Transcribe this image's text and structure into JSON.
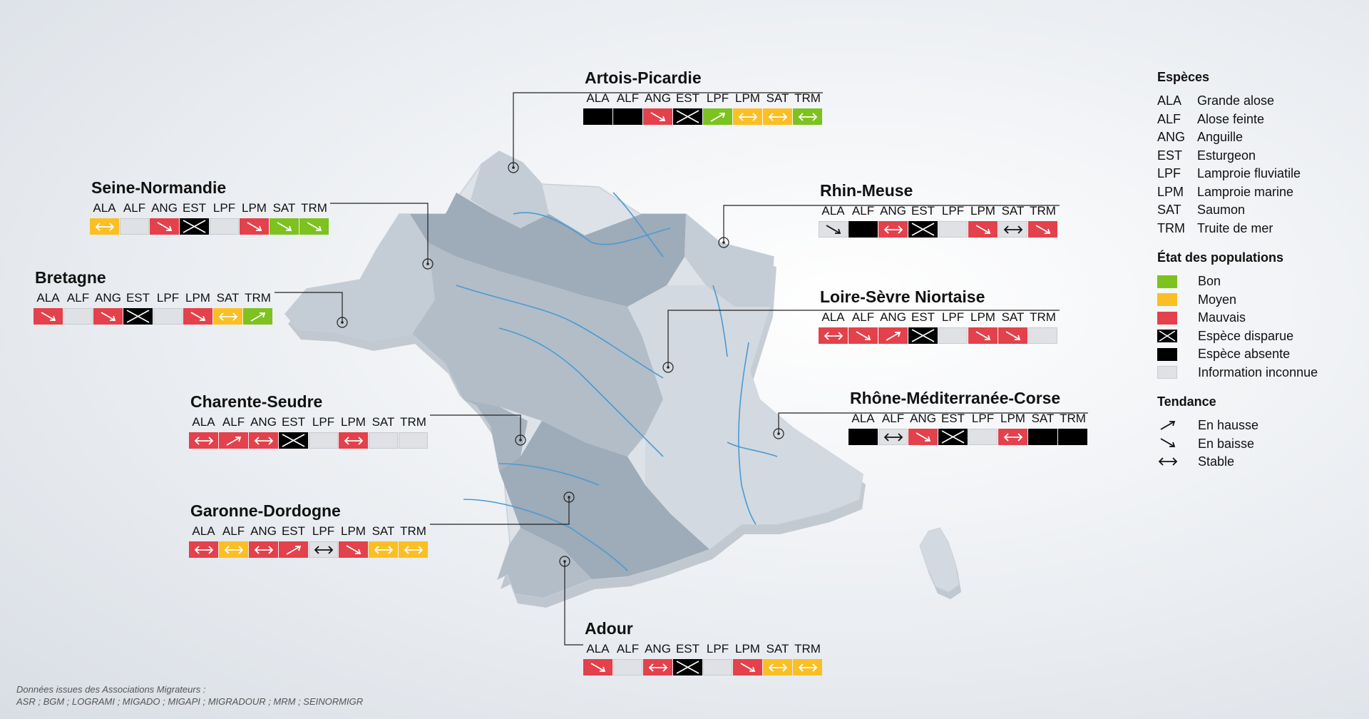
{
  "species_codes": [
    "ALA",
    "ALF",
    "ANG",
    "EST",
    "LPF",
    "LPM",
    "SAT",
    "TRM"
  ],
  "legend": {
    "species_title": "Espèces",
    "species": [
      {
        "code": "ALA",
        "name": "Grande alose"
      },
      {
        "code": "ALF",
        "name": "Alose feinte"
      },
      {
        "code": "ANG",
        "name": "Anguille"
      },
      {
        "code": "EST",
        "name": "Esturgeon"
      },
      {
        "code": "LPF",
        "name": "Lamproie fluviatile"
      },
      {
        "code": "LPM",
        "name": "Lamproie marine"
      },
      {
        "code": "SAT",
        "name": "Saumon"
      },
      {
        "code": "TRM",
        "name": "Truite de mer"
      }
    ],
    "status_title": "État des populations",
    "statuses": [
      {
        "key": "bon",
        "label": "Bon"
      },
      {
        "key": "moyen",
        "label": "Moyen"
      },
      {
        "key": "mauvais",
        "label": "Mauvais"
      },
      {
        "key": "disparue",
        "label": "Espèce disparue"
      },
      {
        "key": "absente",
        "label": "Espèce absente"
      },
      {
        "key": "inconnue",
        "label": "Information inconnue"
      }
    ],
    "trend_title": "Tendance",
    "trends": [
      {
        "key": "up",
        "label": "En hausse"
      },
      {
        "key": "down",
        "label": "En baisse"
      },
      {
        "key": "stable",
        "label": "Stable"
      }
    ]
  },
  "colors": {
    "bon": "#7dc21e",
    "moyen": "#fbbf24",
    "mauvais": "#e3414b",
    "disparue": "#000000",
    "absente": "#000000",
    "inconnue": "#dfe1e5"
  },
  "regions": [
    {
      "id": "artois-picardie",
      "name": "Artois-Picardie",
      "cells": [
        {
          "s": "absente"
        },
        {
          "s": "absente"
        },
        {
          "s": "mauvais",
          "t": "down"
        },
        {
          "s": "disparue"
        },
        {
          "s": "bon",
          "t": "up"
        },
        {
          "s": "moyen",
          "t": "stable"
        },
        {
          "s": "moyen",
          "t": "stable"
        },
        {
          "s": "bon",
          "t": "stable"
        }
      ]
    },
    {
      "id": "seine-normandie",
      "name": "Seine-Normandie",
      "cells": [
        {
          "s": "moyen",
          "t": "stable"
        },
        {
          "s": "inconnue"
        },
        {
          "s": "mauvais",
          "t": "down"
        },
        {
          "s": "disparue"
        },
        {
          "s": "inconnue"
        },
        {
          "s": "mauvais",
          "t": "down"
        },
        {
          "s": "bon",
          "t": "down"
        },
        {
          "s": "bon",
          "t": "down"
        }
      ]
    },
    {
      "id": "rhin-meuse",
      "name": "Rhin-Meuse",
      "cells": [
        {
          "s": "inconnue",
          "t": "down"
        },
        {
          "s": "absente"
        },
        {
          "s": "mauvais",
          "t": "stable"
        },
        {
          "s": "disparue"
        },
        {
          "s": "inconnue"
        },
        {
          "s": "mauvais",
          "t": "down"
        },
        {
          "s": "inconnue",
          "t": "stable"
        },
        {
          "s": "mauvais",
          "t": "down"
        }
      ]
    },
    {
      "id": "bretagne",
      "name": "Bretagne",
      "cells": [
        {
          "s": "mauvais",
          "t": "down"
        },
        {
          "s": "inconnue"
        },
        {
          "s": "mauvais",
          "t": "down"
        },
        {
          "s": "disparue"
        },
        {
          "s": "inconnue"
        },
        {
          "s": "mauvais",
          "t": "down"
        },
        {
          "s": "moyen",
          "t": "stable"
        },
        {
          "s": "bon",
          "t": "up"
        }
      ]
    },
    {
      "id": "loire-sevre",
      "name": "Loire-Sèvre Niortaise",
      "cells": [
        {
          "s": "mauvais",
          "t": "stable"
        },
        {
          "s": "mauvais",
          "t": "down"
        },
        {
          "s": "mauvais",
          "t": "up"
        },
        {
          "s": "disparue"
        },
        {
          "s": "inconnue"
        },
        {
          "s": "mauvais",
          "t": "down"
        },
        {
          "s": "mauvais",
          "t": "down"
        },
        {
          "s": "inconnue"
        }
      ]
    },
    {
      "id": "charente-seudre",
      "name": "Charente-Seudre",
      "cells": [
        {
          "s": "mauvais",
          "t": "stable"
        },
        {
          "s": "mauvais",
          "t": "up"
        },
        {
          "s": "mauvais",
          "t": "stable"
        },
        {
          "s": "disparue"
        },
        {
          "s": "inconnue"
        },
        {
          "s": "mauvais",
          "t": "stable"
        },
        {
          "s": "inconnue"
        },
        {
          "s": "inconnue"
        }
      ]
    },
    {
      "id": "rhone-mediterranee-corse",
      "name": "Rhône-Méditerranée-Corse",
      "cells": [
        {
          "s": "absente"
        },
        {
          "s": "inconnue",
          "t": "stable"
        },
        {
          "s": "mauvais",
          "t": "down"
        },
        {
          "s": "disparue"
        },
        {
          "s": "inconnue"
        },
        {
          "s": "mauvais",
          "t": "stable"
        },
        {
          "s": "absente"
        },
        {
          "s": "absente"
        }
      ]
    },
    {
      "id": "garonne-dordogne",
      "name": "Garonne-Dordogne",
      "cells": [
        {
          "s": "mauvais",
          "t": "stable"
        },
        {
          "s": "moyen",
          "t": "stable"
        },
        {
          "s": "mauvais",
          "t": "stable"
        },
        {
          "s": "mauvais",
          "t": "up"
        },
        {
          "s": "inconnue",
          "t": "stable"
        },
        {
          "s": "mauvais",
          "t": "down"
        },
        {
          "s": "moyen",
          "t": "stable"
        },
        {
          "s": "moyen",
          "t": "stable"
        }
      ]
    },
    {
      "id": "adour",
      "name": "Adour",
      "cells": [
        {
          "s": "mauvais",
          "t": "down"
        },
        {
          "s": "inconnue"
        },
        {
          "s": "mauvais",
          "t": "stable"
        },
        {
          "s": "disparue"
        },
        {
          "s": "inconnue"
        },
        {
          "s": "mauvais",
          "t": "down"
        },
        {
          "s": "moyen",
          "t": "stable"
        },
        {
          "s": "moyen",
          "t": "stable"
        }
      ]
    }
  ],
  "footnote": {
    "line1": "Données issues des Associations Migrateurs :",
    "line2": "ASR ; BGM ; LOGRAMI ; MIGADO ; MIGAPI ; MIGRADOUR ; MRM ; SEINORMIGR"
  }
}
